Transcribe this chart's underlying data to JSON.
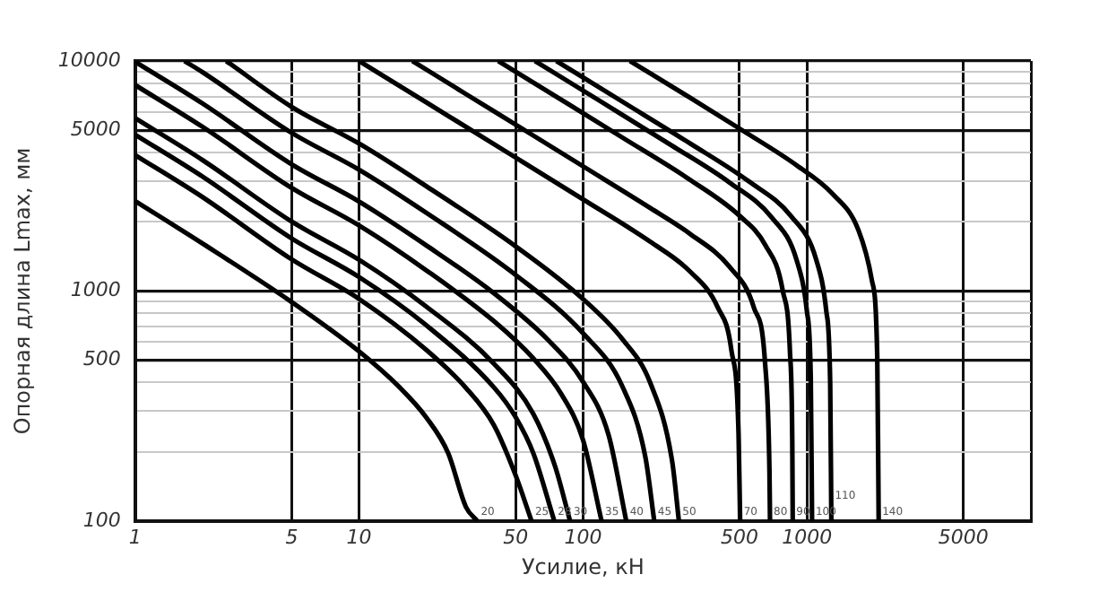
{
  "chart_data": {
    "type": "line",
    "xlabel": "Усилие, кН",
    "ylabel": "Опорная длина Lmax, мм",
    "log": "xy",
    "grid": true,
    "legend": false,
    "marker": "none",
    "line_style": "solid",
    "xlim": [
      1,
      10000
    ],
    "ylim": [
      100,
      10000
    ],
    "xticks": [
      1,
      5,
      10,
      50,
      100,
      500,
      1000,
      5000,
      {
        "value": 10000,
        "label": null
      }
    ],
    "yticks": [
      100,
      {
        "value": 200,
        "label": null
      },
      {
        "value": 300,
        "label": null
      },
      {
        "value": 400,
        "label": null
      },
      500,
      {
        "value": 600,
        "label": null
      },
      {
        "value": 700,
        "label": null
      },
      {
        "value": 800,
        "label": null
      },
      {
        "value": 900,
        "label": null
      },
      1000,
      {
        "value": 2000,
        "label": null
      },
      {
        "value": 3000,
        "label": null
      },
      {
        "value": 4000,
        "label": null
      },
      5000,
      {
        "value": 6000,
        "label": null
      },
      {
        "value": 7000,
        "label": null
      },
      {
        "value": 8000,
        "label": null
      },
      {
        "value": 9000,
        "label": null
      },
      10000
    ],
    "series": [
      {
        "name": "20",
        "color": "#000000",
        "x": [
          1,
          2,
          5,
          10,
          15,
          20,
          25,
          30,
          33.7
        ],
        "values": [
          2460,
          1608,
          895,
          546,
          385,
          281,
          197,
          115,
          100
        ]
      },
      {
        "name": "25",
        "color": "#000000",
        "x": [
          1,
          2,
          5,
          10,
          20,
          30,
          40,
          50,
          58.9
        ],
        "values": [
          3900,
          2560,
          1372,
          923,
          554,
          379,
          261,
          158,
          100
        ]
      },
      {
        "name": "28",
        "color": "#000000",
        "x": [
          1,
          2,
          5,
          10,
          20,
          40,
          50,
          60,
          74.4
        ],
        "values": [
          4780,
          3141,
          1692,
          1149,
          708,
          381,
          283,
          197,
          100
        ]
      },
      {
        "name": "30",
        "color": "#000000",
        "x": [
          1,
          2,
          5,
          10,
          20,
          40,
          60,
          75,
          87.5
        ],
        "values": [
          5640,
          3708,
          2003,
          1366,
          854,
          483,
          292,
          173,
          100
        ]
      },
      {
        "name": "35",
        "color": "#000000",
        "x": [
          1,
          2,
          5,
          10,
          20,
          40,
          60,
          80,
          100,
          121
        ],
        "values": [
          7860,
          5173,
          2806,
          1927,
          1228,
          739,
          509,
          356,
          225,
          100
        ]
      },
      {
        "name": "40",
        "color": "#000000",
        "x": [
          1,
          2,
          5,
          10,
          20,
          40,
          70,
          100,
          130,
          156
        ],
        "values": [
          9920,
          6533,
          3553,
          2449,
          1576,
          978,
          611,
          403,
          237,
          100
        ]
      },
      {
        "name": "45",
        "color": "#000000",
        "x": [
          1.66,
          2,
          5,
          10,
          20,
          50,
          100,
          150,
          190,
          208
        ],
        "values": [
          10000,
          8935,
          4869,
          3366,
          2184,
          1175,
          655,
          384,
          189,
          100
        ]
      },
      {
        "name": "50",
        "color": "#000000",
        "x": [
          2.55,
          5,
          10,
          20,
          50,
          100,
          150,
          200,
          250,
          268
        ],
        "values": [
          10000,
          6315,
          4373,
          2851,
          1565,
          923,
          617,
          397,
          182,
          100
        ]
      },
      {
        "name": "70",
        "color": "#000000",
        "x": [
          10,
          20,
          50,
          100,
          200,
          300,
          400,
          460,
          495,
          503
        ],
        "values": [
          10000,
          6597,
          3804,
          2502,
          1635,
          1217,
          847,
          551,
          240,
          100
        ]
      },
      {
        "name": "80",
        "color": "#000000",
        "x": [
          17.3,
          30,
          60,
          100,
          200,
          300,
          450,
          580,
          650,
          680,
          684
        ],
        "values": [
          10000,
          7183,
          4739,
          3484,
          2292,
          1774,
          1277,
          844,
          487,
          167,
          100
        ]
      },
      {
        "name": "90",
        "color": "#000000",
        "x": [
          41.8,
          80,
          150,
          300,
          500,
          650,
          780,
          840,
          860,
          864
        ],
        "values": [
          10000,
          6780,
          4646,
          3048,
          2124,
          1589,
          1001,
          540,
          221,
          100
        ]
      },
      {
        "name": "100",
        "color": "#000000",
        "x": [
          61,
          120,
          250,
          450,
          700,
          900,
          1000,
          1040,
          1054
        ],
        "values": [
          10000,
          6668,
          4282,
          2966,
          2075,
          1360,
          813,
          417,
          100
        ]
      },
      {
        "name": "110",
        "color": "#000000",
        "x": [
          76,
          150,
          300,
          550,
          850,
          1100,
          1220,
          1270,
          1285
        ],
        "values": [
          10000,
          6653,
          4388,
          2996,
          2111,
          1369,
          818,
          397,
          100
        ]
      },
      {
        "name": "140",
        "color": "#000000",
        "x": [
          162,
          300,
          500,
          900,
          1300,
          1700,
          1950,
          2060,
          2091
        ],
        "values": [
          10000,
          6932,
          5080,
          3517,
          2647,
          1834,
          1111,
          524,
          100
        ]
      }
    ]
  }
}
